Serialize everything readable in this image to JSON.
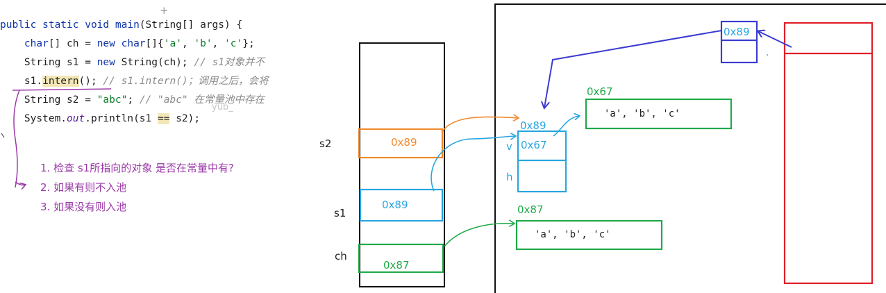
{
  "code": {
    "line1": {
      "a": "public static void ",
      "b": "main",
      "c": "(String[] args) {"
    },
    "line2": {
      "a": "    ",
      "b": "char",
      "c": "[] ch = ",
      "d": "new ",
      "e": "char",
      "f": "[]{",
      "g": "'a'",
      "h": ", ",
      "i": "'b'",
      "j": ", ",
      "k": "'c'",
      "l": "};"
    },
    "line3": {
      "a": "    String s1 = ",
      "b": "new ",
      "c": "String(ch); ",
      "d": "// s1对象并不"
    },
    "line4": {
      "a": "    s1.",
      "b": "intern",
      "c": "(); ",
      "d": "// s1.intern()；调用之后，会将"
    },
    "line5": {
      "a": "    String s2 = ",
      "b": "\"abc\"",
      "c": "; ",
      "d": "// \"abc\" 在常量池中存在"
    },
    "line6": {
      "a": "    System.",
      "b": "out",
      "c": ".println(s1 ",
      "d": "==",
      "e": " s2);"
    }
  },
  "notes": [
    "1. 检查 s1所指向的对象 是否在常量中有?",
    "2. 如果有则不入池",
    "3. 如果没有则入池"
  ],
  "watermark": "yub_",
  "stack": {
    "s2_label": "s2",
    "s2_value": "0x89",
    "s1_label": "s1",
    "s1_value": "0x89",
    "ch_label": "ch",
    "ch_value": "0x87"
  },
  "heap": {
    "string_obj_addr": "0x89",
    "string_obj_v_label": "v",
    "string_obj_v_value": "0x67",
    "string_obj_h_label": "h",
    "array1_addr": "0x67",
    "array1_content": "'a', 'b', 'c'",
    "array2_addr": "0x87",
    "array2_content": "'a', 'b', 'c'",
    "pool_entry_value": "0x89"
  },
  "colors": {
    "orange": "#f08a2c",
    "blue": "#29a6e0",
    "green": "#1faa4a",
    "red": "#e01e2a",
    "indigo": "#3b3bd0",
    "purple": "#9b3aa8"
  }
}
